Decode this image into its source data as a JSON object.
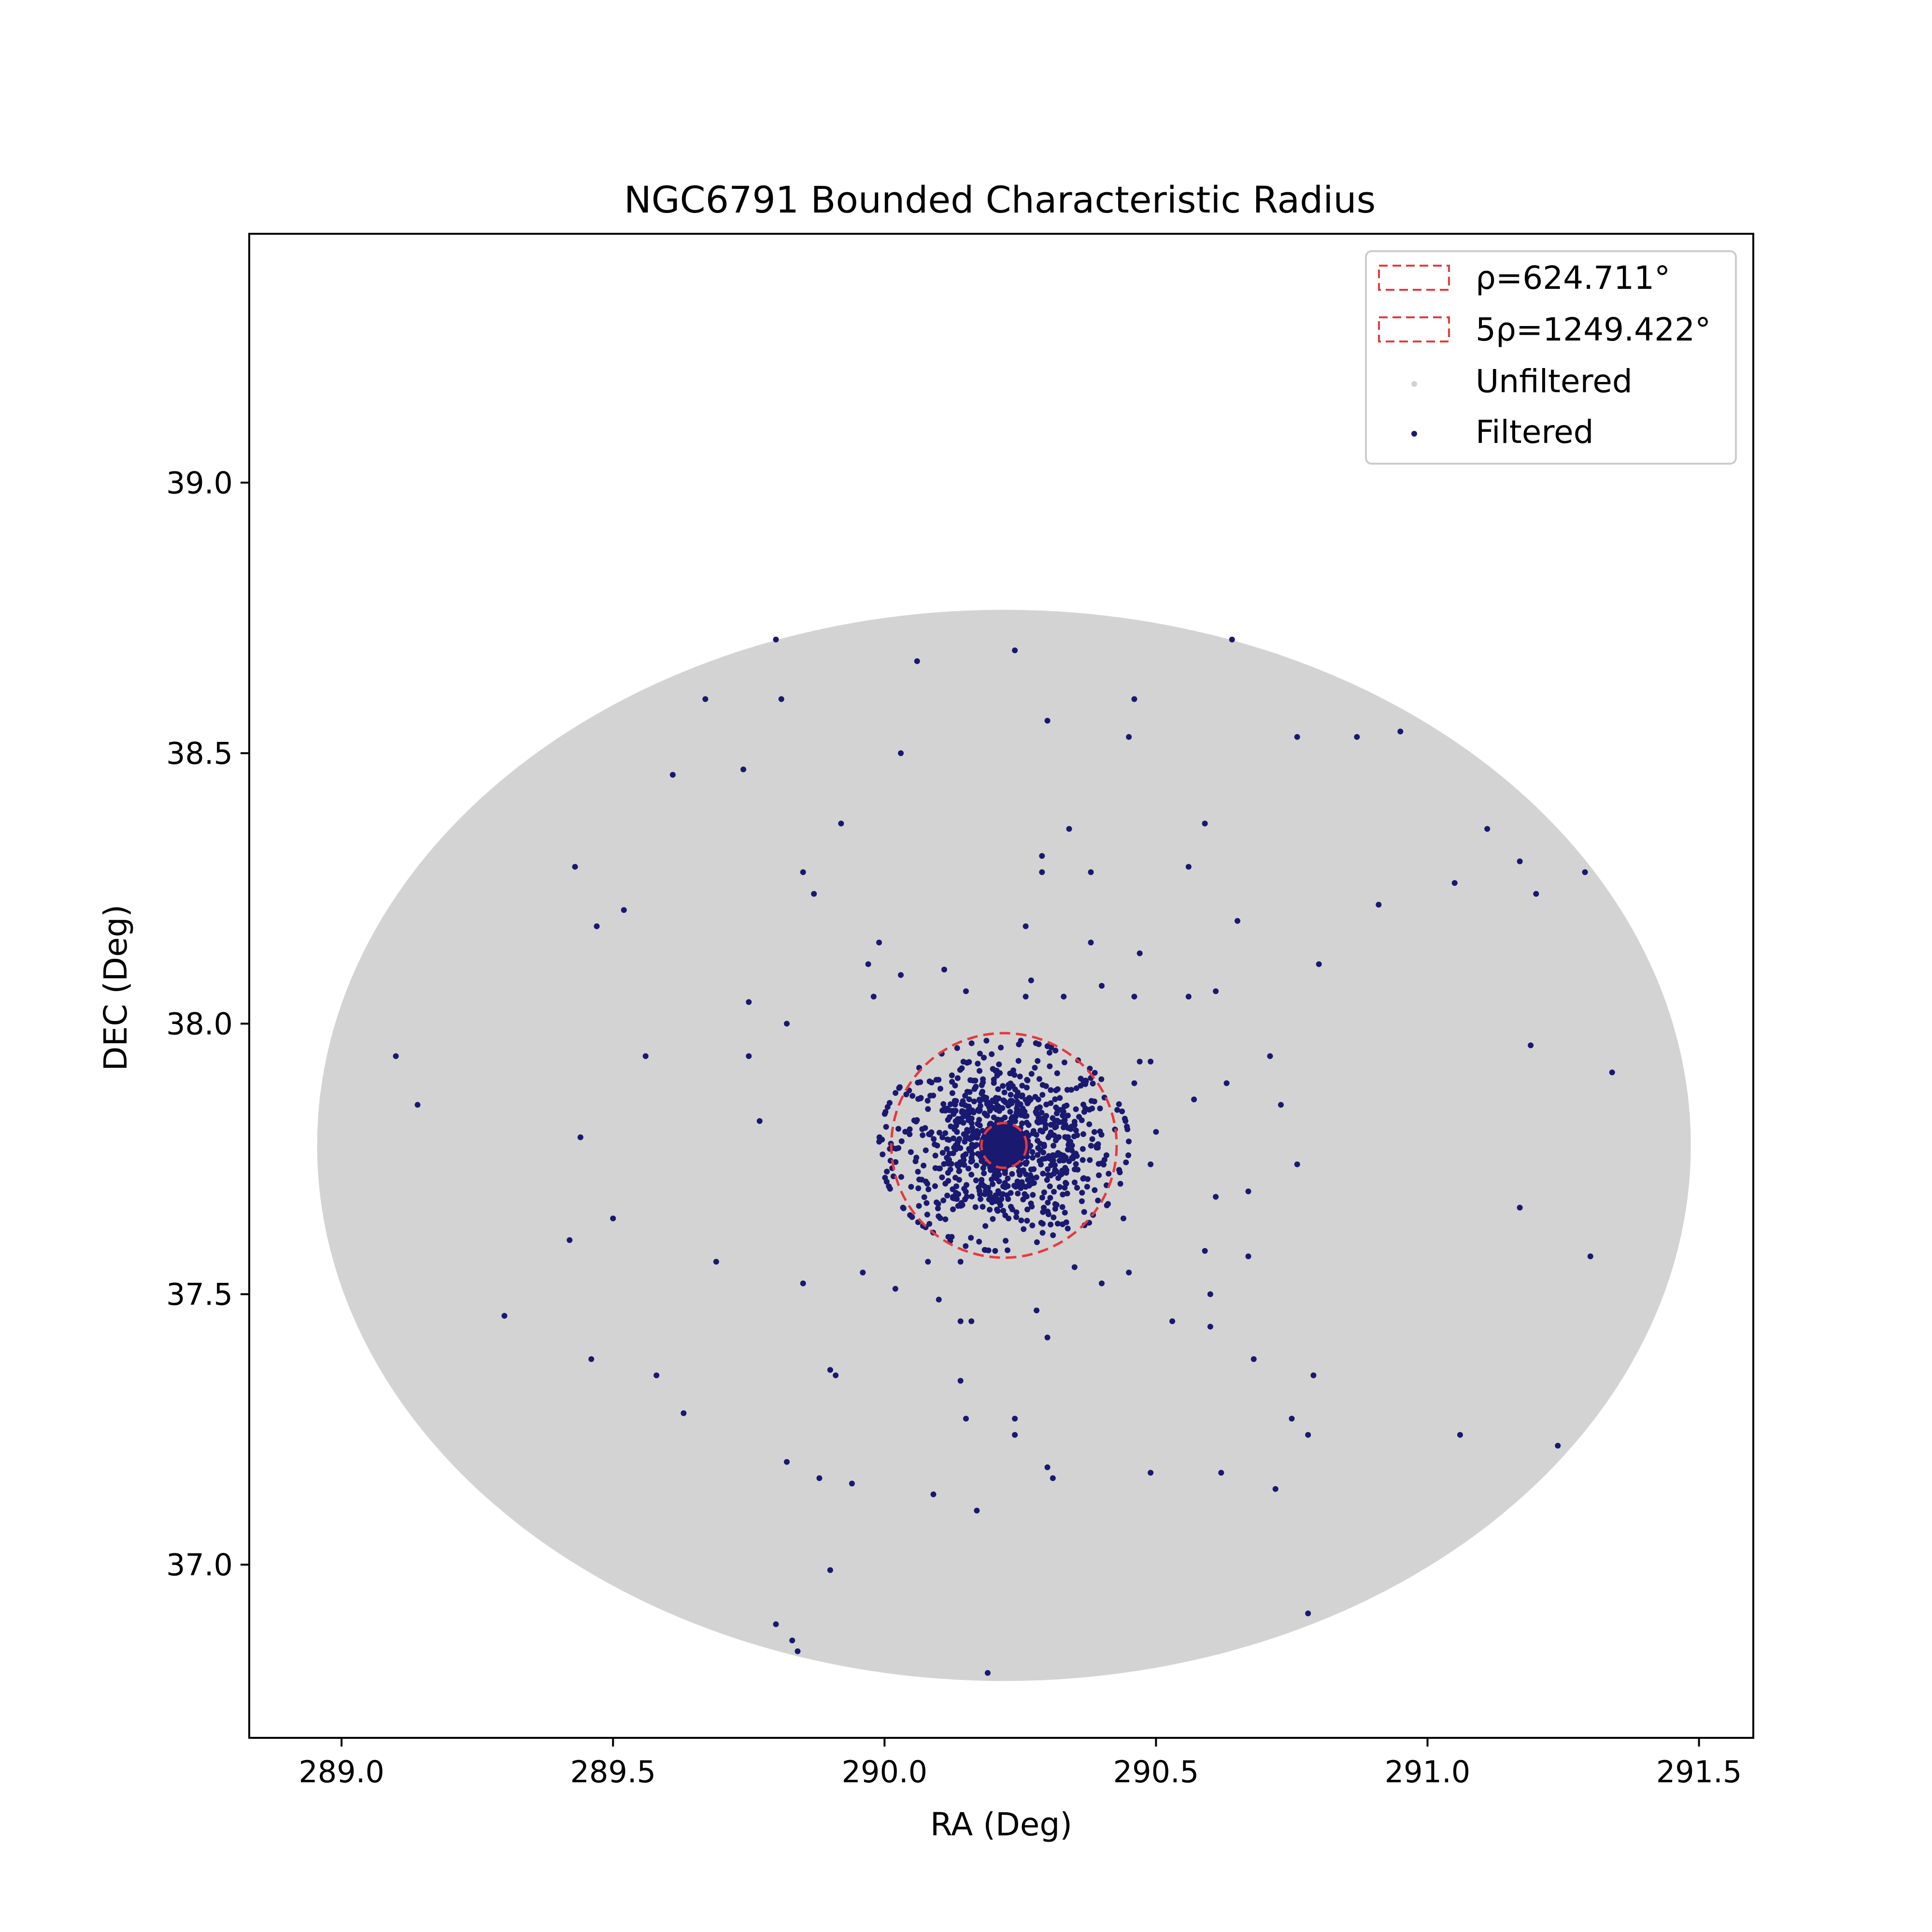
{
  "chart_data": {
    "type": "scatter",
    "title": "NGC6791 Bounded Characteristic Radius",
    "xlabel": "RA (Deg)",
    "ylabel": "DEC (Deg)",
    "xlim": [
      288.83,
      291.6
    ],
    "ylim": [
      36.68,
      39.46
    ],
    "x_ticks": [
      289.0,
      289.5,
      290.0,
      290.5,
      291.0,
      291.5
    ],
    "x_tick_labels": [
      "289.0",
      "289.5",
      "290.0",
      "290.5",
      "291.0",
      "291.5"
    ],
    "y_ticks": [
      37.0,
      37.5,
      38.0,
      38.5,
      39.0
    ],
    "y_tick_labels": [
      "37.0",
      "37.5",
      "38.0",
      "38.5",
      "39.0"
    ],
    "grid": false,
    "legend_position": "top-right",
    "colors": {
      "unfiltered": "#d3d3d3",
      "filtered": "#191970",
      "circle": "#e8383b"
    },
    "regions": [
      {
        "name": "ρ=624.711°",
        "shape": "circle",
        "center": [
          290.22,
          37.775
        ],
        "radius": 0.0415,
        "style": "dashed",
        "color": "#e8383b"
      },
      {
        "name": "5ρ=1249.422°",
        "shape": "circle",
        "center": [
          290.22,
          37.775
        ],
        "radius": 0.2075,
        "style": "dashed",
        "color": "#e8383b"
      }
    ],
    "series": [
      {
        "name": "Unfiltered",
        "kind": "filled-region",
        "center": [
          290.22,
          37.775
        ],
        "ra_half_width": 1.265,
        "dec_half_height": 0.99,
        "color": "#d3d3d3"
      },
      {
        "name": "Filtered",
        "color": "#191970",
        "cluster_core": {
          "center": [
            290.22,
            37.775
          ],
          "radius": 0.04
        },
        "cluster_members": {
          "center": [
            290.22,
            37.775
          ],
          "radius": 0.2,
          "count": 900
        },
        "points": [
          [
            289.8,
            38.71
          ],
          [
            290.06,
            38.67
          ],
          [
            290.24,
            38.69
          ],
          [
            290.64,
            38.71
          ],
          [
            289.67,
            38.6
          ],
          [
            289.81,
            38.6
          ],
          [
            290.3,
            38.56
          ],
          [
            290.46,
            38.6
          ],
          [
            290.95,
            38.54
          ],
          [
            290.45,
            38.53
          ],
          [
            290.76,
            38.53
          ],
          [
            290.87,
            38.53
          ],
          [
            289.74,
            38.47
          ],
          [
            290.03,
            38.5
          ],
          [
            289.61,
            38.46
          ],
          [
            289.92,
            38.37
          ],
          [
            290.34,
            38.36
          ],
          [
            290.59,
            38.37
          ],
          [
            291.11,
            38.36
          ],
          [
            289.43,
            38.29
          ],
          [
            289.85,
            38.28
          ],
          [
            290.29,
            38.31
          ],
          [
            290.29,
            38.28
          ],
          [
            290.38,
            38.28
          ],
          [
            290.56,
            38.29
          ],
          [
            291.17,
            38.3
          ],
          [
            291.29,
            38.28
          ],
          [
            289.87,
            38.24
          ],
          [
            291.05,
            38.26
          ],
          [
            291.2,
            38.24
          ],
          [
            290.91,
            38.22
          ],
          [
            289.47,
            38.18
          ],
          [
            289.52,
            38.21
          ],
          [
            290.26,
            38.18
          ],
          [
            290.65,
            38.19
          ],
          [
            289.99,
            38.15
          ],
          [
            290.38,
            38.15
          ],
          [
            290.47,
            38.13
          ],
          [
            289.97,
            38.11
          ],
          [
            290.8,
            38.11
          ],
          [
            290.03,
            38.09
          ],
          [
            290.11,
            38.1
          ],
          [
            290.27,
            38.08
          ],
          [
            290.4,
            38.07
          ],
          [
            290.61,
            38.06
          ],
          [
            290.56,
            38.05
          ],
          [
            290.15,
            38.06
          ],
          [
            290.33,
            38.05
          ],
          [
            289.98,
            38.05
          ],
          [
            289.75,
            38.04
          ],
          [
            290.26,
            38.05
          ],
          [
            290.46,
            38.05
          ],
          [
            289.82,
            38.0
          ],
          [
            289.1,
            37.94
          ],
          [
            289.56,
            37.94
          ],
          [
            289.75,
            37.94
          ],
          [
            290.71,
            37.94
          ],
          [
            291.19,
            37.96
          ],
          [
            291.34,
            37.91
          ],
          [
            290.47,
            37.93
          ],
          [
            290.49,
            37.93
          ],
          [
            290.46,
            37.89
          ],
          [
            290.63,
            37.89
          ],
          [
            290.57,
            37.86
          ],
          [
            290.73,
            37.85
          ],
          [
            289.14,
            37.85
          ],
          [
            289.77,
            37.82
          ],
          [
            289.44,
            37.79
          ],
          [
            290.5,
            37.8
          ],
          [
            290.76,
            37.74
          ],
          [
            290.49,
            37.74
          ],
          [
            290.67,
            37.69
          ],
          [
            290.61,
            37.68
          ],
          [
            291.17,
            37.66
          ],
          [
            289.5,
            37.64
          ],
          [
            290.44,
            37.64
          ],
          [
            289.42,
            37.6
          ],
          [
            290.59,
            37.58
          ],
          [
            290.67,
            37.57
          ],
          [
            291.3,
            37.57
          ],
          [
            289.69,
            37.56
          ],
          [
            290.45,
            37.54
          ],
          [
            289.85,
            37.52
          ],
          [
            289.96,
            37.54
          ],
          [
            290.02,
            37.51
          ],
          [
            290.1,
            37.49
          ],
          [
            290.6,
            37.5
          ],
          [
            290.53,
            37.45
          ],
          [
            290.6,
            37.44
          ],
          [
            289.3,
            37.46
          ],
          [
            290.14,
            37.45
          ],
          [
            290.16,
            37.45
          ],
          [
            290.28,
            37.47
          ],
          [
            290.3,
            37.42
          ],
          [
            290.68,
            37.38
          ],
          [
            289.46,
            37.38
          ],
          [
            289.58,
            37.35
          ],
          [
            289.9,
            37.36
          ],
          [
            289.91,
            37.35
          ],
          [
            290.14,
            37.34
          ],
          [
            290.79,
            37.35
          ],
          [
            289.63,
            37.28
          ],
          [
            290.15,
            37.27
          ],
          [
            290.24,
            37.27
          ],
          [
            290.75,
            37.27
          ],
          [
            291.06,
            37.24
          ],
          [
            291.24,
            37.22
          ],
          [
            290.24,
            37.24
          ],
          [
            290.78,
            37.24
          ],
          [
            289.82,
            37.19
          ],
          [
            290.3,
            37.18
          ],
          [
            290.31,
            37.16
          ],
          [
            290.49,
            37.17
          ],
          [
            290.62,
            37.17
          ],
          [
            289.88,
            37.16
          ],
          [
            289.94,
            37.15
          ],
          [
            290.09,
            37.13
          ],
          [
            290.72,
            37.14
          ],
          [
            290.17,
            37.1
          ],
          [
            289.9,
            36.99
          ],
          [
            289.8,
            36.89
          ],
          [
            289.83,
            36.86
          ],
          [
            289.84,
            36.84
          ],
          [
            290.78,
            36.91
          ],
          [
            290.19,
            36.8
          ],
          [
            290.08,
            37.56
          ],
          [
            290.14,
            37.56
          ],
          [
            290.35,
            37.55
          ],
          [
            290.4,
            37.52
          ]
        ]
      }
    ]
  }
}
